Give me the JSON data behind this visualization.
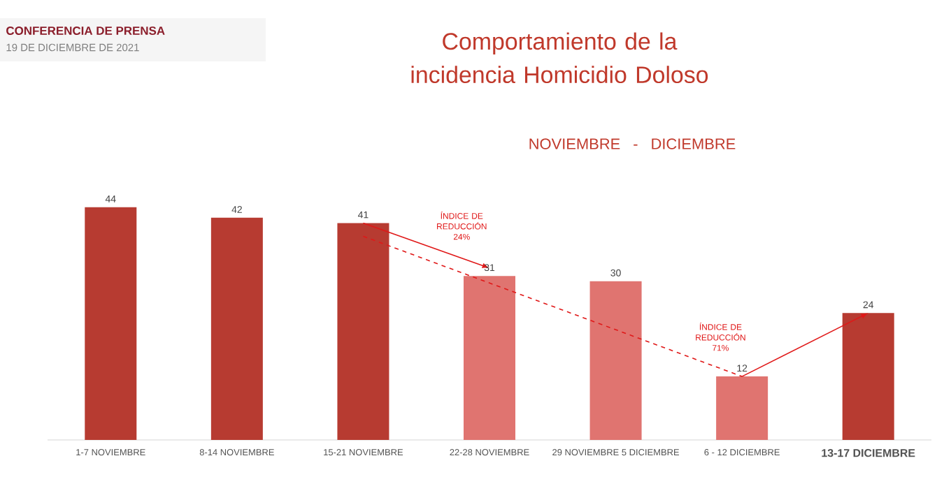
{
  "chart_data": {
    "type": "bar",
    "title": "Comportamiento de la incidencia Homicidio Doloso",
    "subtitle": "NOVIEMBRE - DICIEMBRE",
    "categories": [
      "1-7 NOVIEMBRE",
      "8-14 NOVIEMBRE",
      "15-21 NOVIEMBRE",
      "22-28 NOVIEMBRE",
      "29 NOVIEMBRE 5 DICIEMBRE",
      "6 - 12 DICIEMBRE",
      "13-17 DICIEMBRE"
    ],
    "values": [
      44,
      42,
      41,
      31,
      30,
      12,
      24
    ],
    "colors": [
      "#b73b31",
      "#b73b31",
      "#b73b31",
      "#e07470",
      "#e07470",
      "#e07470",
      "#b73b31"
    ],
    "data_labels": true,
    "annotations": [
      "CONFERENCIA DE PRENSA",
      "19 DE DICIEMBRE DE 2021",
      "ÍNDICE DE REDUCCIÓN 24%",
      "ÍNDICE DE REDUCCIÓN 71%"
    ]
  }
}
